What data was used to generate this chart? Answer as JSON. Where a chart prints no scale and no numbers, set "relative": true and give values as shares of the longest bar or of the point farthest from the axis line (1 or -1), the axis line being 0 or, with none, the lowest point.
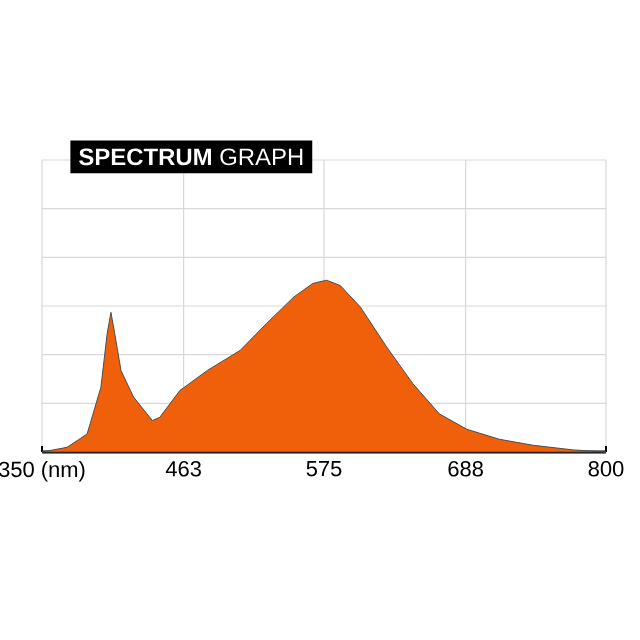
{
  "chart_data": {
    "type": "area",
    "title": "**SPECTRUM** GRAPH",
    "relative": true,
    "grid": true,
    "x": [
      350,
      370,
      386,
      397,
      402,
      405,
      408,
      413,
      423,
      438,
      444,
      460,
      482,
      508,
      529,
      551,
      566,
      577,
      588,
      604,
      625,
      646,
      667,
      689,
      715,
      742,
      774,
      800
    ],
    "values": [
      0,
      0.027,
      0.105,
      0.377,
      0.69,
      0.813,
      0.69,
      0.475,
      0.32,
      0.183,
      0.202,
      0.358,
      0.475,
      0.591,
      0.747,
      0.903,
      0.981,
      1.0,
      0.969,
      0.844,
      0.611,
      0.397,
      0.222,
      0.132,
      0.074,
      0.039,
      0.012,
      0
    ],
    "color": "#f0600a",
    "xlim": [
      350,
      800
    ],
    "xticks": [
      {
        "value": 350,
        "label": "350 (nm)"
      },
      463,
      575,
      688,
      800
    ]
  }
}
